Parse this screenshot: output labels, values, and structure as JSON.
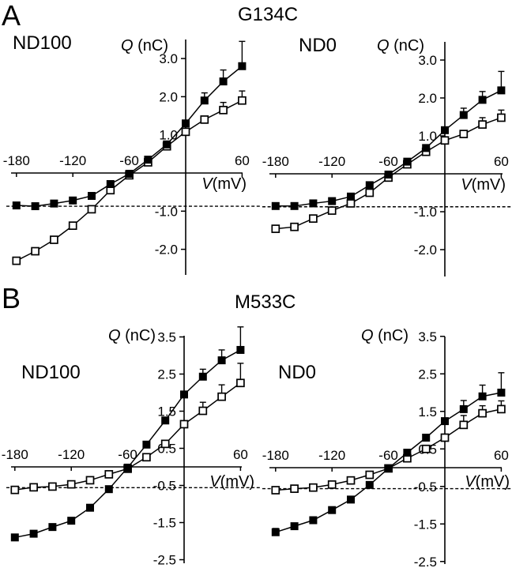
{
  "figure": {
    "section_a": "A",
    "section_b": "B",
    "title_a": "G134C",
    "title_b": "M533C",
    "a_left_condition": "ND100",
    "a_right_condition": "ND0",
    "b_left_condition": "ND100",
    "b_right_condition": "ND0"
  },
  "colors": {
    "ink": "#000000",
    "background": "#ffffff"
  },
  "chart_data": [
    {
      "id": "g134c_nd100",
      "type": "line",
      "mutant": "G134C",
      "condition": "ND100",
      "ylabel_symbol": "Q",
      "ylabel_units": " (nC)",
      "xlabel_symbol": "V",
      "xlabel_units": "(mV)",
      "x_ticks": [
        -180,
        -120,
        -60,
        60
      ],
      "y_ticks": [
        3.0,
        2.0,
        1.0,
        -1.0,
        -2.0
      ],
      "y_tick_labels": [
        "3.0",
        "2.0",
        "1.0",
        "-1.0",
        "-2.0"
      ],
      "xlim": [
        -185,
        62
      ],
      "ylim": [
        -2.7,
        3.5
      ],
      "baseline_dash_y": -0.87,
      "x": [
        -180,
        -160,
        -140,
        -120,
        -100,
        -80,
        -60,
        -40,
        -20,
        0,
        20,
        40,
        60
      ],
      "series": [
        {
          "name": "open-squares",
          "marker": "open",
          "values": [
            -2.3,
            -2.05,
            -1.75,
            -1.38,
            -0.95,
            -0.45,
            -0.06,
            0.28,
            0.7,
            1.08,
            1.4,
            1.65,
            1.9
          ],
          "err": [
            0,
            0,
            0,
            0,
            0,
            0,
            0,
            0,
            0,
            0,
            0,
            0.2,
            0.25
          ]
        },
        {
          "name": "filled-squares",
          "marker": "filled",
          "values": [
            -0.85,
            -0.87,
            -0.8,
            -0.72,
            -0.6,
            -0.29,
            -0.02,
            0.35,
            0.75,
            1.3,
            1.9,
            2.4,
            2.8
          ],
          "err": [
            0,
            0,
            0,
            0,
            0,
            0,
            0,
            0,
            0,
            0,
            0.2,
            0.3,
            0.65
          ]
        }
      ]
    },
    {
      "id": "g134c_nd0",
      "type": "line",
      "mutant": "G134C",
      "condition": "ND0",
      "ylabel_symbol": "Q",
      "ylabel_units": " (nC)",
      "xlabel_symbol": "V",
      "xlabel_units": "(mV)",
      "x_ticks": [
        -180,
        -120,
        -60,
        60
      ],
      "y_ticks": [
        3.0,
        2.0,
        1.0,
        -1.0,
        -2.0
      ],
      "y_tick_labels": [
        "3.0",
        "2.0",
        "1.0",
        "-1.0",
        "-2.0"
      ],
      "xlim": [
        -185,
        62
      ],
      "ylim": [
        -2.7,
        3.5
      ],
      "baseline_dash_y": -0.87,
      "x": [
        -180,
        -160,
        -140,
        -120,
        -100,
        -80,
        -60,
        -40,
        -20,
        0,
        20,
        40,
        60
      ],
      "series": [
        {
          "name": "open-squares",
          "marker": "open",
          "values": [
            -1.45,
            -1.4,
            -1.18,
            -0.97,
            -0.78,
            -0.5,
            -0.1,
            0.25,
            0.58,
            0.88,
            1.05,
            1.3,
            1.48
          ],
          "err": [
            0,
            0,
            0,
            0,
            0,
            0,
            0,
            0,
            0,
            0,
            0,
            0.18,
            0.2
          ]
        },
        {
          "name": "filled-squares",
          "marker": "filled",
          "values": [
            -0.85,
            -0.85,
            -0.78,
            -0.72,
            -0.6,
            -0.3,
            -0.02,
            0.32,
            0.68,
            1.15,
            1.55,
            1.95,
            2.2
          ],
          "err": [
            0,
            0,
            0,
            0,
            0,
            0,
            0,
            0,
            0,
            0,
            0.18,
            0.22,
            0.5
          ]
        }
      ]
    },
    {
      "id": "m533c_nd100",
      "type": "line",
      "mutant": "M533C",
      "condition": "ND100",
      "ylabel_symbol": "Q",
      "ylabel_units": " (nC)",
      "xlabel_symbol": "V",
      "xlabel_units": "(mV)",
      "x_ticks": [
        -180,
        -120,
        -60,
        60
      ],
      "y_ticks": [
        3.5,
        2.5,
        1.5,
        0.5,
        -0.5,
        -1.5,
        -2.5
      ],
      "y_tick_labels": [
        "3.5",
        "2.5",
        "1.5",
        "0.5",
        "-0.5",
        "-1.5",
        "-2.5"
      ],
      "xlim": [
        -185,
        62
      ],
      "ylim": [
        -2.6,
        3.6
      ],
      "baseline_dash_y": -0.56,
      "x": [
        -180,
        -160,
        -140,
        -120,
        -100,
        -80,
        -60,
        -40,
        -20,
        0,
        20,
        40,
        60
      ],
      "series": [
        {
          "name": "open-squares",
          "marker": "open",
          "values": [
            -0.62,
            -0.55,
            -0.53,
            -0.47,
            -0.36,
            -0.2,
            -0.05,
            0.26,
            0.62,
            1.15,
            1.51,
            1.89,
            2.26
          ],
          "err": [
            0,
            0,
            0,
            0,
            0,
            0,
            0,
            0,
            0,
            0,
            0.23,
            0.32,
            0.53
          ]
        },
        {
          "name": "filled-squares",
          "marker": "filled",
          "values": [
            -1.9,
            -1.8,
            -1.62,
            -1.45,
            -1.1,
            -0.6,
            -0.02,
            0.6,
            1.25,
            1.95,
            2.43,
            2.87,
            3.15
          ],
          "err": [
            0,
            0,
            0,
            0,
            0,
            0,
            0,
            0,
            0,
            0,
            0.2,
            0.28,
            0.62
          ]
        }
      ]
    },
    {
      "id": "m533c_nd0",
      "type": "line",
      "mutant": "M533C",
      "condition": "ND0",
      "ylabel_symbol": "Q",
      "ylabel_units": " (nC)",
      "xlabel_symbol": "V",
      "xlabel_units": "(mV)",
      "x_ticks": [
        -180,
        -120,
        -60,
        60
      ],
      "y_ticks": [
        3.5,
        2.5,
        1.5,
        0.5,
        -0.5,
        -1.5,
        -2.5
      ],
      "y_tick_labels": [
        "3.5",
        "2.5",
        "1.5",
        "0.5",
        "-0.5",
        "-1.5",
        "-2.5"
      ],
      "xlim": [
        -185,
        62
      ],
      "ylim": [
        -2.6,
        3.6
      ],
      "baseline_dash_y": -0.56,
      "x": [
        -180,
        -160,
        -140,
        -120,
        -100,
        -80,
        -60,
        -40,
        -20,
        0,
        20,
        40,
        60
      ],
      "series": [
        {
          "name": "open-squares",
          "marker": "open",
          "values": [
            -0.6,
            -0.56,
            -0.53,
            -0.45,
            -0.34,
            -0.19,
            -0.02,
            0.25,
            0.5,
            0.8,
            1.14,
            1.45,
            1.56
          ],
          "err": [
            0,
            0,
            0,
            0,
            0,
            0,
            0,
            0,
            0,
            0,
            0.25,
            0.2,
            0.22
          ]
        },
        {
          "name": "filled-squares",
          "marker": "filled",
          "values": [
            -1.72,
            -1.56,
            -1.4,
            -1.13,
            -0.85,
            -0.46,
            -0.02,
            0.4,
            0.8,
            1.24,
            1.56,
            1.9,
            2.0
          ],
          "err": [
            0.1,
            0,
            0,
            0,
            0,
            0,
            0,
            0,
            0,
            0,
            0.23,
            0.3,
            0.53
          ]
        }
      ]
    }
  ]
}
